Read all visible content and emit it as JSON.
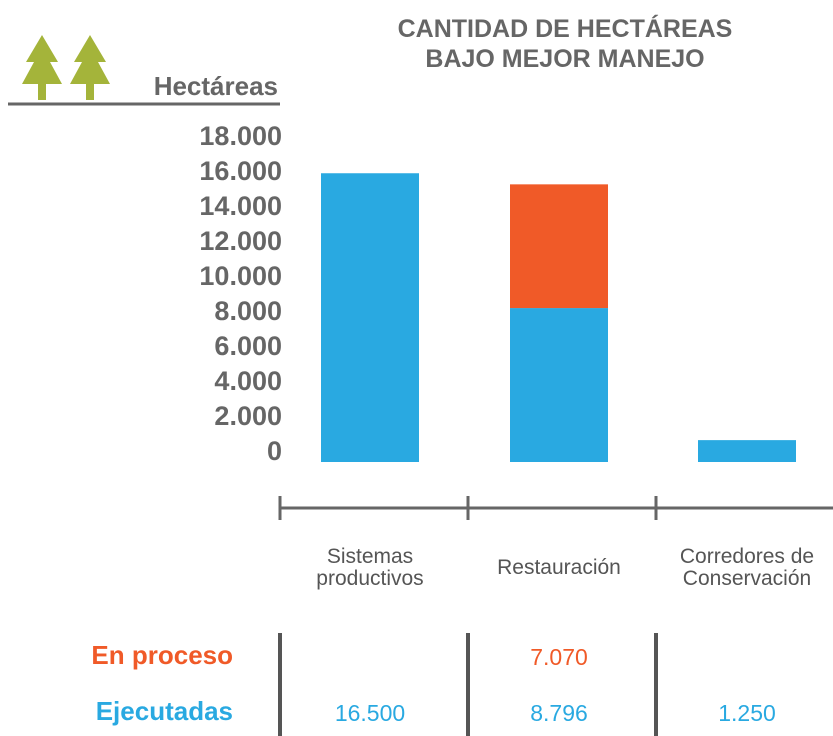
{
  "chart_data": {
    "type": "bar",
    "stacked": true,
    "title": "CANTIDAD DE HECTÁREAS BAJO MEJOR MANEJO",
    "y_label": "Hectáreas",
    "categories": [
      "Sistemas productivos",
      "Restauración",
      "Corredores de Conservación"
    ],
    "series": [
      {
        "name": "Ejecutadas",
        "color": "#29a9e1",
        "values": [
          16500,
          8796,
          1250
        ],
        "value_labels": [
          "16.500",
          "8.796",
          "1.250"
        ]
      },
      {
        "name": "En proceso",
        "color": "#f05a28",
        "values": [
          null,
          7070,
          null
        ],
        "value_labels": [
          null,
          "7.070",
          null
        ]
      }
    ],
    "ylim": [
      0,
      18000
    ],
    "yticks": [
      0,
      {
        "value": 2000,
        "label": "2.000"
      },
      {
        "value": 4000,
        "label": "4.000"
      },
      {
        "value": 6000,
        "label": "6.000"
      },
      {
        "value": 8000,
        "label": "8.000"
      },
      {
        "value": 10000,
        "label": "10.000"
      },
      {
        "value": 12000,
        "label": "12.000"
      },
      {
        "value": 14000,
        "label": "14.000"
      },
      {
        "value": 16000,
        "label": "16.000"
      },
      {
        "value": 18000,
        "label": "18.000"
      }
    ],
    "grid": false
  }
}
